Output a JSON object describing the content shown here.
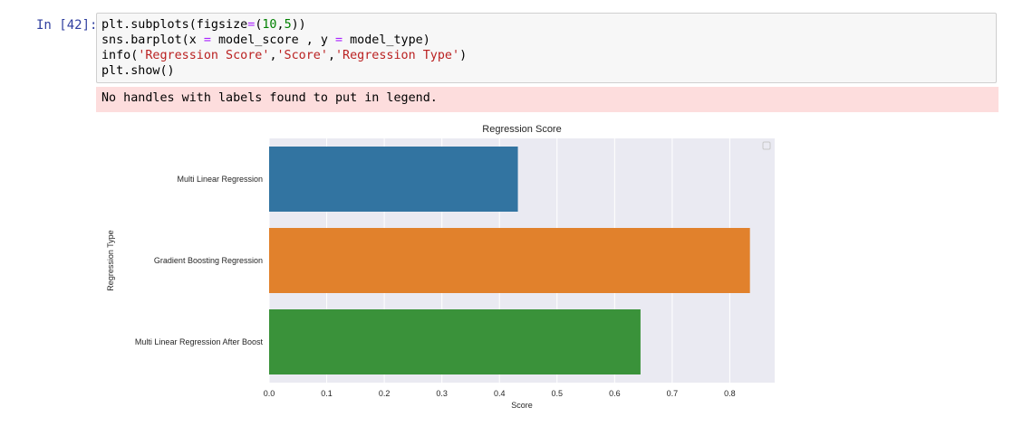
{
  "cell": {
    "prompt": "In [42]:",
    "code_lines": [
      [
        {
          "t": "plt.subplots(figsize"
        },
        {
          "t": "=",
          "c": "op"
        },
        {
          "t": "("
        },
        {
          "t": "10",
          "c": "num"
        },
        {
          "t": ","
        },
        {
          "t": "5",
          "c": "num"
        },
        {
          "t": "))"
        }
      ],
      [
        {
          "t": "sns.barplot(x "
        },
        {
          "t": "=",
          "c": "op"
        },
        {
          "t": " model_score , y "
        },
        {
          "t": "=",
          "c": "op"
        },
        {
          "t": " model_type)"
        }
      ],
      [
        {
          "t": "info("
        },
        {
          "t": "'Regression Score'",
          "c": "str"
        },
        {
          "t": ","
        },
        {
          "t": "'Score'",
          "c": "str"
        },
        {
          "t": ","
        },
        {
          "t": "'Regression Type'",
          "c": "str"
        },
        {
          "t": ")"
        }
      ],
      [
        {
          "t": "plt.show()"
        }
      ]
    ],
    "stderr": "No handles with labels found to put in legend."
  },
  "chart_data": {
    "type": "bar",
    "orientation": "horizontal",
    "title": "Regression Score",
    "xlabel": "Score",
    "ylabel": "Regression Type",
    "categories": [
      "Multi Linear Regression",
      "Gradient Boosting Regression",
      "Multi Linear Regression After Boost"
    ],
    "values": [
      0.432,
      0.835,
      0.645
    ],
    "colors": [
      "#3274a1",
      "#e1812c",
      "#3a923a"
    ],
    "xlim": [
      0,
      0.878
    ],
    "xticks": [
      "0.0",
      "0.1",
      "0.2",
      "0.3",
      "0.4",
      "0.5",
      "0.6",
      "0.7",
      "0.8"
    ],
    "grid": true,
    "legend": "top-right (empty)",
    "background": "#eaeaf2"
  }
}
